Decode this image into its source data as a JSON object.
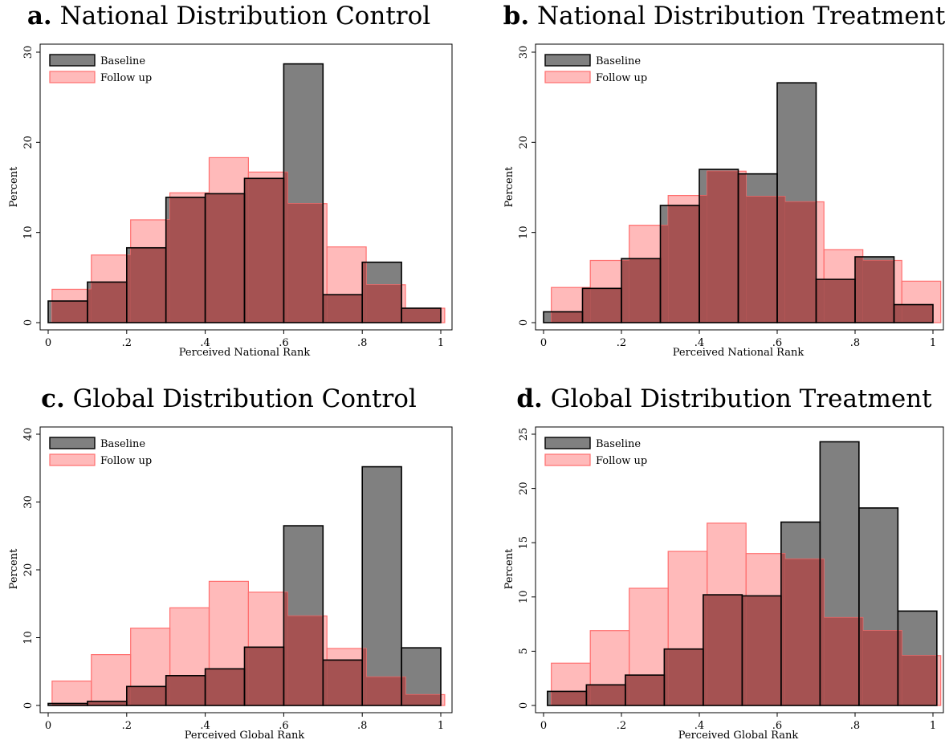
{
  "colors": {
    "baseline_fill": "#808080",
    "baseline_stroke": "#000000",
    "followup_fill": "#ff8c8c",
    "followup_stroke": "#ff6f6f",
    "overlap_fill": "#a55252"
  },
  "legend": {
    "baseline": "Baseline",
    "followup": "Follow up"
  },
  "chart_data": [
    {
      "type": "bar",
      "panel_letter": "a.",
      "title": "National Distribution Control",
      "xlabel": "Perceived National Rank",
      "ylabel": "Percent",
      "xlim": [
        0,
        1
      ],
      "ylim": [
        0,
        30
      ],
      "xticks": [
        "0",
        ".2",
        ".4",
        ".6",
        ".8",
        "1"
      ],
      "yticks": [
        "0",
        "10",
        "20",
        "30"
      ],
      "legend_position": "top-left",
      "series": [
        {
          "name": "Baseline",
          "bins": [
            [
              0,
              0.1,
              2.4
            ],
            [
              0.1,
              0.2,
              4.5
            ],
            [
              0.2,
              0.3,
              8.3
            ],
            [
              0.3,
              0.4,
              13.9
            ],
            [
              0.4,
              0.5,
              14.3
            ],
            [
              0.5,
              0.6,
              16.0
            ],
            [
              0.6,
              0.7,
              28.7
            ],
            [
              0.7,
              0.8,
              3.1
            ],
            [
              0.8,
              0.9,
              6.7
            ],
            [
              0.9,
              1.0,
              1.6
            ]
          ]
        },
        {
          "name": "Follow up",
          "bins": [
            [
              0.01,
              0.11,
              3.7
            ],
            [
              0.11,
              0.21,
              7.5
            ],
            [
              0.21,
              0.31,
              11.4
            ],
            [
              0.31,
              0.41,
              14.4
            ],
            [
              0.41,
              0.51,
              18.3
            ],
            [
              0.51,
              0.61,
              16.7
            ],
            [
              0.61,
              0.71,
              13.2
            ],
            [
              0.71,
              0.81,
              8.4
            ],
            [
              0.81,
              0.91,
              4.2
            ],
            [
              0.91,
              1.01,
              1.6
            ]
          ]
        }
      ]
    },
    {
      "type": "bar",
      "panel_letter": "b.",
      "title": "National Distribution Treatment",
      "xlabel": "Perceived National Rank",
      "ylabel": "Percent",
      "xlim": [
        0,
        1
      ],
      "ylim": [
        0,
        30
      ],
      "xticks": [
        "0",
        ".2",
        ".4",
        ".6",
        ".8",
        "1"
      ],
      "yticks": [
        "0",
        "10",
        "20",
        "30"
      ],
      "legend_position": "top-left",
      "series": [
        {
          "name": "Baseline",
          "bins": [
            [
              0,
              0.1,
              1.2
            ],
            [
              0.1,
              0.2,
              3.8
            ],
            [
              0.2,
              0.3,
              7.1
            ],
            [
              0.3,
              0.4,
              13.0
            ],
            [
              0.4,
              0.5,
              17.0
            ],
            [
              0.5,
              0.6,
              16.5
            ],
            [
              0.6,
              0.7,
              26.6
            ],
            [
              0.7,
              0.8,
              4.8
            ],
            [
              0.8,
              0.9,
              7.3
            ],
            [
              0.9,
              1.0,
              2.0
            ]
          ]
        },
        {
          "name": "Follow up",
          "bins": [
            [
              0.02,
              0.12,
              3.9
            ],
            [
              0.12,
              0.22,
              6.9
            ],
            [
              0.22,
              0.32,
              10.8
            ],
            [
              0.32,
              0.42,
              14.1
            ],
            [
              0.42,
              0.52,
              16.8
            ],
            [
              0.52,
              0.62,
              14.0
            ],
            [
              0.62,
              0.72,
              13.4
            ],
            [
              0.72,
              0.82,
              8.1
            ],
            [
              0.82,
              0.92,
              6.9
            ],
            [
              0.92,
              1.02,
              4.6
            ]
          ]
        }
      ]
    },
    {
      "type": "bar",
      "panel_letter": "c.",
      "title": "Global Distribution Control",
      "xlabel": "Perceived Global Rank",
      "ylabel": "Percent",
      "xlim": [
        0,
        1
      ],
      "ylim": [
        0,
        40
      ],
      "xticks": [
        "0",
        ".2",
        ".4",
        ".6",
        ".8",
        "1"
      ],
      "yticks": [
        "0",
        "10",
        "20",
        "30",
        "40"
      ],
      "legend_position": "top-left",
      "series": [
        {
          "name": "Baseline",
          "bins": [
            [
              0,
              0.1,
              0.3
            ],
            [
              0.1,
              0.2,
              0.6
            ],
            [
              0.2,
              0.3,
              2.8
            ],
            [
              0.3,
              0.4,
              4.4
            ],
            [
              0.4,
              0.5,
              5.4
            ],
            [
              0.5,
              0.6,
              8.6
            ],
            [
              0.6,
              0.7,
              26.5
            ],
            [
              0.7,
              0.8,
              6.7
            ],
            [
              0.8,
              0.9,
              35.2
            ],
            [
              0.9,
              1.0,
              8.5
            ]
          ]
        },
        {
          "name": "Follow up",
          "bins": [
            [
              0.01,
              0.11,
              3.6
            ],
            [
              0.11,
              0.21,
              7.5
            ],
            [
              0.21,
              0.31,
              11.4
            ],
            [
              0.31,
              0.41,
              14.4
            ],
            [
              0.41,
              0.51,
              18.3
            ],
            [
              0.51,
              0.61,
              16.7
            ],
            [
              0.61,
              0.71,
              13.2
            ],
            [
              0.71,
              0.81,
              8.4
            ],
            [
              0.81,
              0.91,
              4.2
            ],
            [
              0.91,
              1.01,
              1.6
            ]
          ]
        }
      ]
    },
    {
      "type": "bar",
      "panel_letter": "d.",
      "title": "Global Distribution Treatment",
      "xlabel": "Perceived Global Rank",
      "ylabel": "Percent",
      "xlim": [
        0,
        1
      ],
      "ylim": [
        0,
        25
      ],
      "xticks": [
        "0",
        ".2",
        ".4",
        ".6",
        ".8",
        "1"
      ],
      "yticks": [
        "0",
        "5",
        "10",
        "15",
        "20",
        "25"
      ],
      "legend_position": "top-left",
      "series": [
        {
          "name": "Baseline",
          "bins": [
            [
              0.01,
              0.11,
              1.3
            ],
            [
              0.11,
              0.21,
              1.9
            ],
            [
              0.21,
              0.31,
              2.8
            ],
            [
              0.31,
              0.41,
              5.2
            ],
            [
              0.41,
              0.51,
              10.2
            ],
            [
              0.51,
              0.61,
              10.1
            ],
            [
              0.61,
              0.71,
              16.9
            ],
            [
              0.71,
              0.81,
              24.3
            ],
            [
              0.81,
              0.91,
              18.2
            ],
            [
              0.91,
              1.01,
              8.7
            ]
          ]
        },
        {
          "name": "Follow up",
          "bins": [
            [
              0.02,
              0.12,
              3.9
            ],
            [
              0.12,
              0.22,
              6.9
            ],
            [
              0.22,
              0.32,
              10.8
            ],
            [
              0.32,
              0.42,
              14.2
            ],
            [
              0.42,
              0.52,
              16.8
            ],
            [
              0.52,
              0.62,
              14.0
            ],
            [
              0.62,
              0.72,
              13.5
            ],
            [
              0.72,
              0.82,
              8.1
            ],
            [
              0.82,
              0.92,
              6.9
            ],
            [
              0.92,
              1.02,
              4.6
            ]
          ]
        }
      ]
    }
  ]
}
